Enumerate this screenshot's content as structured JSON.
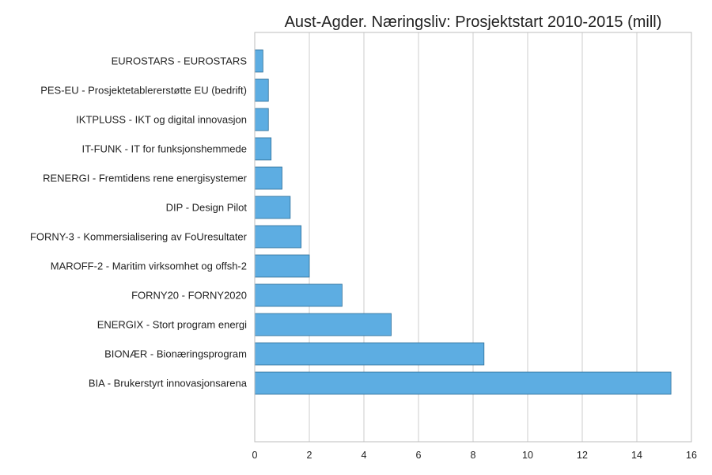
{
  "chart_data": {
    "type": "bar",
    "orientation": "horizontal",
    "title": "Aust-Agder. Næringsliv: Prosjektstart 2010-2015 (mill)",
    "xlabel": "",
    "ylabel": "",
    "xlim": [
      0,
      16
    ],
    "xticks": [
      "0",
      "2",
      "4",
      "6",
      "8",
      "10",
      "12",
      "14",
      "16"
    ],
    "grid": true,
    "bar_color": "#5DADE2",
    "categories": [
      "EUROSTARS - EUROSTARS",
      "PES-EU - Prosjektetablererstøtte EU (bedrift)",
      "IKTPLUSS - IKT og digital innovasjon",
      "IT-FUNK - IT for funksjonshemmede",
      "RENERGI - Fremtidens rene energisystemer",
      "DIP - Design Pilot",
      "FORNY-3 - Kommersialisering av FoUresultater",
      "MAROFF-2 - Maritim virksomhet og offsh-2",
      "FORNY20 - FORNY2020",
      "ENERGIX - Stort program energi",
      "BIONÆR - Bionæringsprogram",
      "BIA - Brukerstyrt innovasjonsarena"
    ],
    "values": [
      0.3,
      0.5,
      0.5,
      0.6,
      1.0,
      1.3,
      1.7,
      2.0,
      3.2,
      5.0,
      8.4,
      15.25
    ]
  }
}
